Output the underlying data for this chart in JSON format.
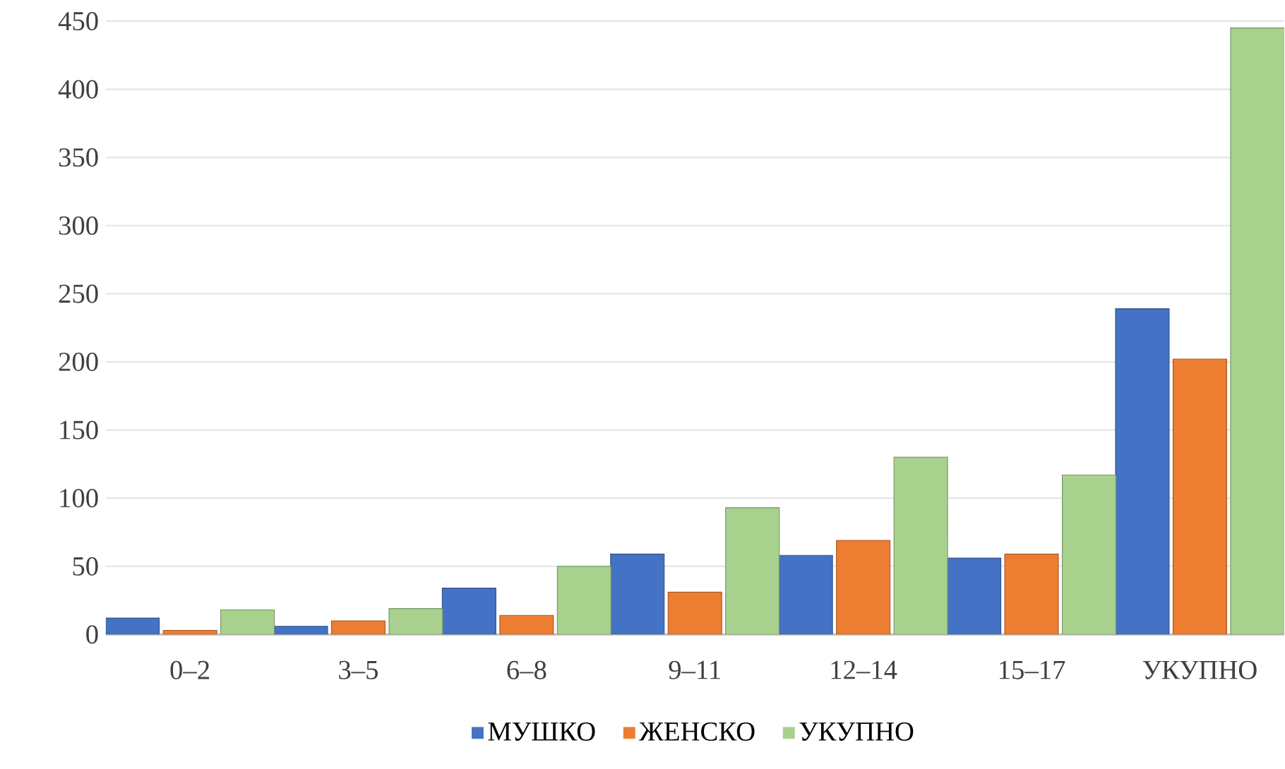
{
  "chart_data": {
    "type": "bar",
    "categories": [
      "0–2",
      "3–5",
      "6–8",
      "9–11",
      "12–14",
      "15–17",
      "УКУПНО"
    ],
    "series": [
      {
        "name": "МУШКО",
        "color": "#4472c4",
        "values": [
          12,
          6,
          34,
          59,
          58,
          56,
          239
        ]
      },
      {
        "name": "ЖЕНСКО",
        "color": "#ed7d31",
        "values": [
          3,
          10,
          14,
          31,
          69,
          59,
          202
        ]
      },
      {
        "name": "УКУПНО",
        "color": "#a9d18e",
        "values": [
          18,
          19,
          50,
          93,
          130,
          117,
          445
        ]
      }
    ],
    "ylim": [
      0,
      450
    ],
    "yticks": [
      0,
      50,
      100,
      150,
      200,
      250,
      300,
      350,
      400,
      450
    ],
    "grid": "y",
    "legend": "bottom"
  }
}
